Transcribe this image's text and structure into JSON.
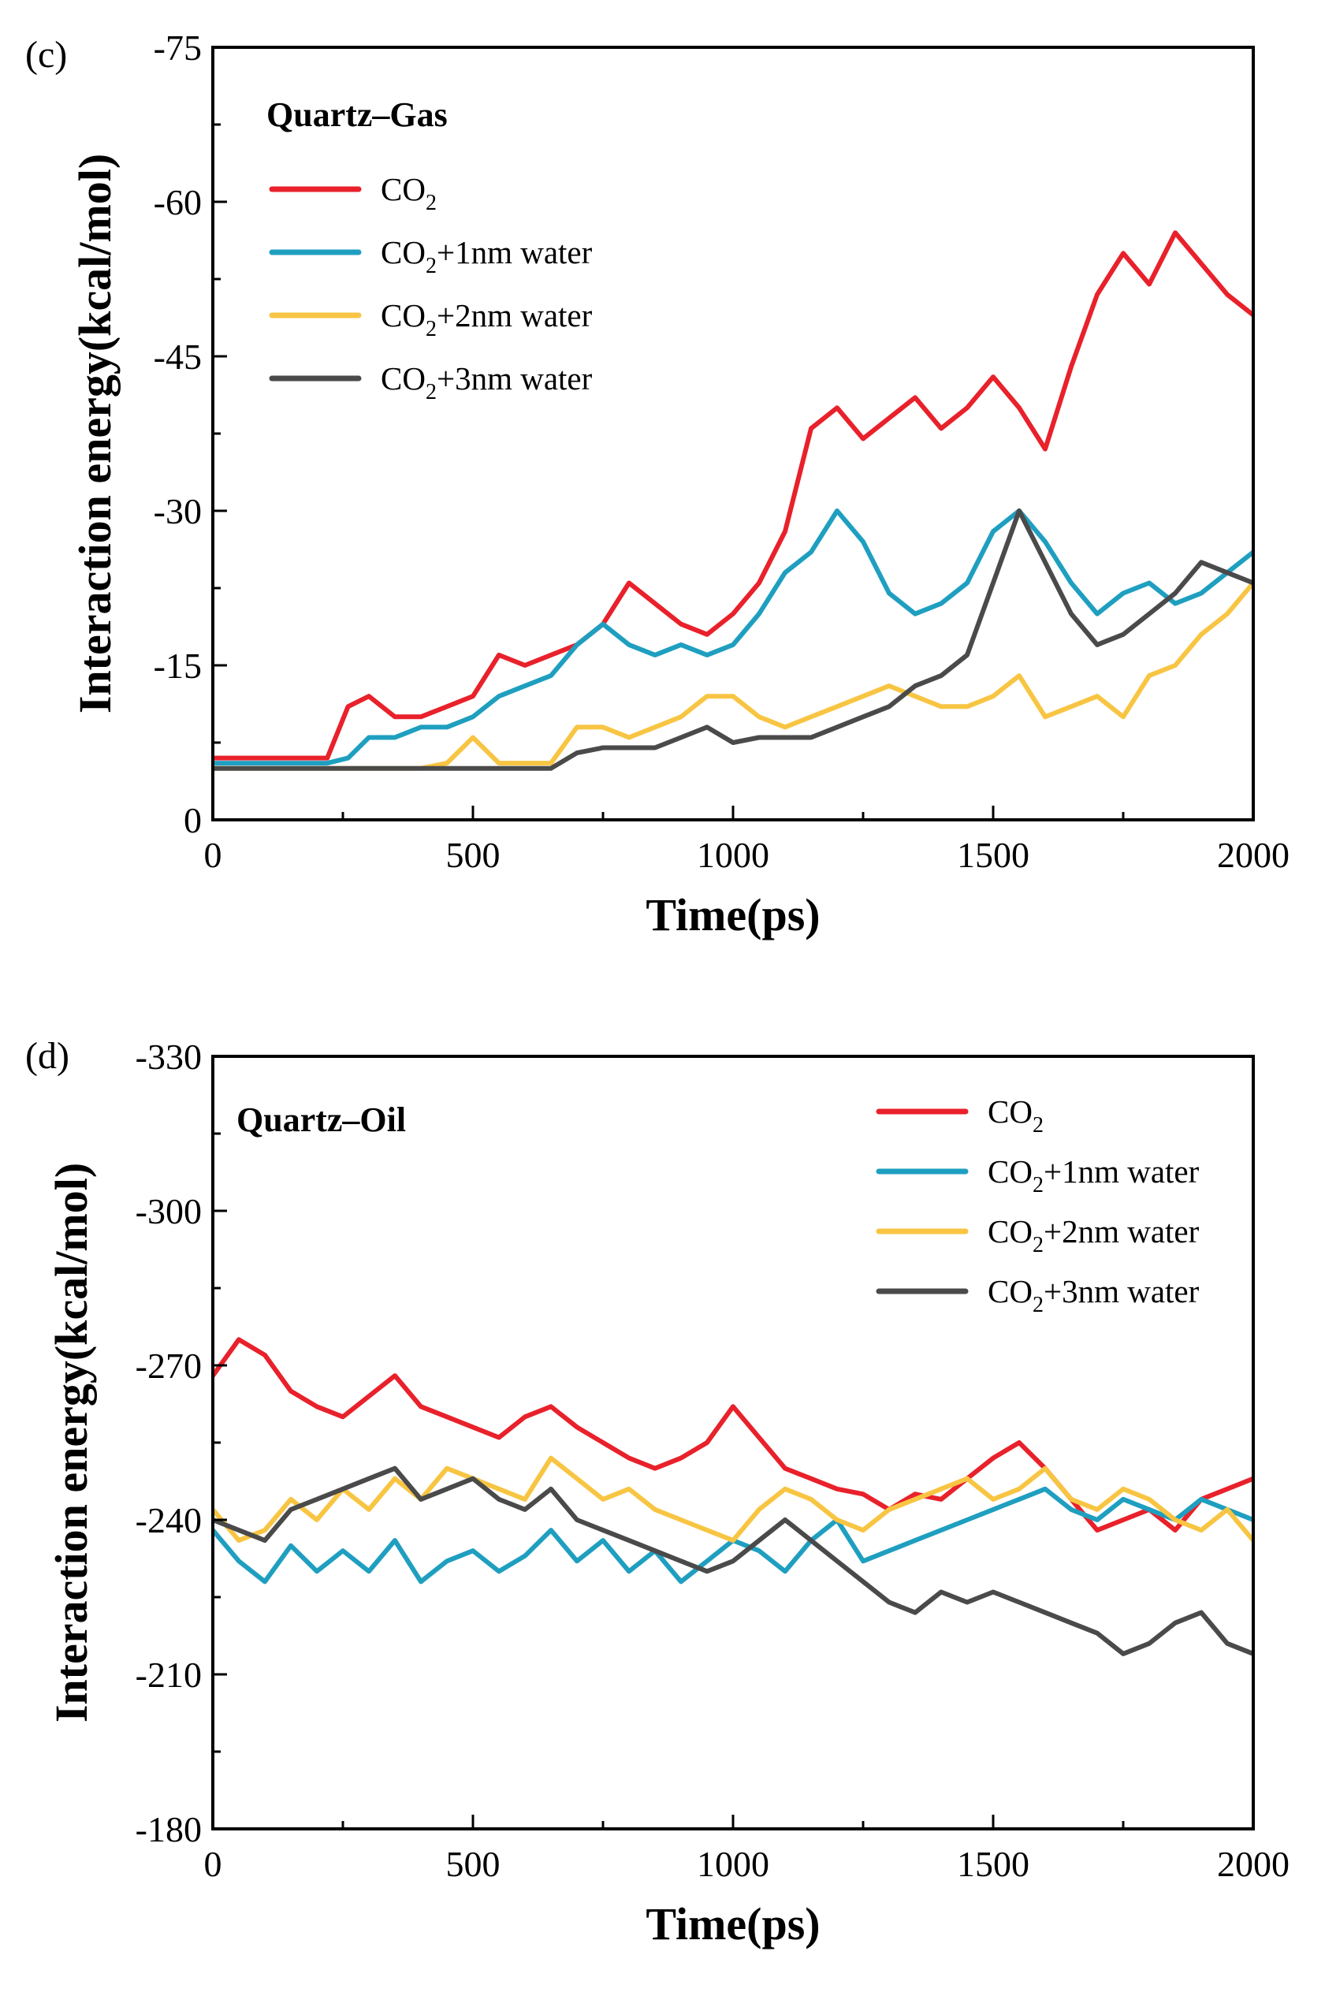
{
  "chart_data": [
    {
      "type": "line",
      "panel_label": "(c)",
      "title": "Quartz–Gas",
      "xlabel": "Time(ps)",
      "ylabel": "Interaction energy(kcal/mol)",
      "xlim": [
        0,
        2000
      ],
      "ylim": [
        0,
        -75
      ],
      "xticks": [
        "0",
        "500",
        "1000",
        "1500",
        "2000"
      ],
      "yticks": [
        "0",
        "-15",
        "-30",
        "-45",
        "-60",
        "-75"
      ],
      "legend_position": "top-left",
      "x": [
        0,
        100,
        200,
        220,
        260,
        300,
        350,
        400,
        450,
        500,
        550,
        600,
        650,
        700,
        750,
        800,
        850,
        900,
        950,
        1000,
        1050,
        1100,
        1150,
        1200,
        1250,
        1300,
        1350,
        1400,
        1450,
        1500,
        1550,
        1600,
        1650,
        1700,
        1750,
        1800,
        1850,
        1900,
        1950,
        2000
      ],
      "series": [
        {
          "name": "CO2",
          "legend_main": "CO",
          "legend_sub": "2",
          "legend_rest": "",
          "color": "#e8212b",
          "values": [
            -6,
            -6,
            -6,
            -6,
            -11,
            -12,
            -10,
            -10,
            -11,
            -12,
            -16,
            -15,
            -16,
            -17,
            -19,
            -23,
            -21,
            -19,
            -18,
            -20,
            -23,
            -28,
            -38,
            -40,
            -37,
            -39,
            -41,
            -38,
            -40,
            -43,
            -40,
            -36,
            -44,
            -51,
            -55,
            -52,
            -57,
            -54,
            -51,
            -49
          ]
        },
        {
          "name": "CO2+1nm water",
          "legend_main": "CO",
          "legend_sub": "2",
          "legend_rest": "+1nm water",
          "color": "#1f9fc0",
          "values": [
            -5.5,
            -5.5,
            -5.5,
            -5.5,
            -6,
            -8,
            -8,
            -9,
            -9,
            -10,
            -12,
            -13,
            -14,
            -17,
            -19,
            -17,
            -16,
            -17,
            -16,
            -17,
            -20,
            -24,
            -26,
            -30,
            -27,
            -22,
            -20,
            -21,
            -23,
            -28,
            -30,
            -27,
            -23,
            -20,
            -22,
            -23,
            -21,
            -22,
            -24,
            -26
          ]
        },
        {
          "name": "CO2+2nm water",
          "legend_main": "CO",
          "legend_sub": "2",
          "legend_rest": "+2nm water",
          "color": "#f8c543",
          "values": [
            -5,
            -5,
            -5,
            -5,
            -5,
            -5,
            -5,
            -5,
            -5.5,
            -8,
            -5.5,
            -5.5,
            -5.5,
            -9,
            -9,
            -8,
            -9,
            -10,
            -12,
            -12,
            -10,
            -9,
            -10,
            -11,
            -12,
            -13,
            -12,
            -11,
            -11,
            -12,
            -14,
            -10,
            -11,
            -12,
            -10,
            -14,
            -15,
            -18,
            -20,
            -23
          ]
        },
        {
          "name": "CO2+3nm water",
          "legend_main": "CO",
          "legend_sub": "2",
          "legend_rest": "+3nm water",
          "color": "#4a4a4a",
          "values": [
            -5,
            -5,
            -5,
            -5,
            -5,
            -5,
            -5,
            -5,
            -5,
            -5,
            -5,
            -5,
            -5,
            -6.5,
            -7,
            -7,
            -7,
            -8,
            -9,
            -7.5,
            -8,
            -8,
            -8,
            -9,
            -10,
            -11,
            -13,
            -14,
            -16,
            -23,
            -30,
            -25,
            -20,
            -17,
            -18,
            -20,
            -22,
            -25,
            -24,
            -23
          ]
        }
      ]
    },
    {
      "type": "line",
      "panel_label": "(d)",
      "title": "Quartz–Oil",
      "xlabel": "Time(ps)",
      "ylabel": "Interaction energy(kcal/mol)",
      "xlim": [
        0,
        2000
      ],
      "ylim": [
        -180,
        -330
      ],
      "xticks": [
        "0",
        "500",
        "1000",
        "1500",
        "2000"
      ],
      "yticks": [
        "-180",
        "-210",
        "-240",
        "-270",
        "-300",
        "-330"
      ],
      "legend_position": "top-right",
      "x": [
        0,
        50,
        100,
        150,
        200,
        250,
        300,
        350,
        400,
        450,
        500,
        550,
        600,
        650,
        700,
        750,
        800,
        850,
        900,
        950,
        1000,
        1050,
        1100,
        1150,
        1200,
        1250,
        1300,
        1350,
        1400,
        1450,
        1500,
        1550,
        1600,
        1650,
        1700,
        1750,
        1800,
        1850,
        1900,
        1950,
        2000
      ],
      "series": [
        {
          "name": "CO2",
          "legend_main": "CO",
          "legend_sub": "2",
          "legend_rest": "",
          "color": "#e8212b",
          "values": [
            -268,
            -275,
            -272,
            -265,
            -262,
            -260,
            -264,
            -268,
            -262,
            -260,
            -258,
            -256,
            -260,
            -262,
            -258,
            -255,
            -252,
            -250,
            -252,
            -255,
            -262,
            -256,
            -250,
            -248,
            -246,
            -245,
            -242,
            -245,
            -244,
            -248,
            -252,
            -255,
            -250,
            -244,
            -238,
            -240,
            -242,
            -238,
            -244,
            -246,
            -248
          ]
        },
        {
          "name": "CO2+1nm water",
          "legend_main": "CO",
          "legend_sub": "2",
          "legend_rest": "+1nm water",
          "color": "#1f9fc0",
          "values": [
            -238,
            -232,
            -228,
            -235,
            -230,
            -234,
            -230,
            -236,
            -228,
            -232,
            -234,
            -230,
            -233,
            -238,
            -232,
            -236,
            -230,
            -234,
            -228,
            -232,
            -236,
            -234,
            -230,
            -236,
            -240,
            -232,
            -234,
            -236,
            -238,
            -240,
            -242,
            -244,
            -246,
            -242,
            -240,
            -244,
            -242,
            -240,
            -244,
            -242,
            -240
          ]
        },
        {
          "name": "CO2+2nm water",
          "legend_main": "CO",
          "legend_sub": "2",
          "legend_rest": "+2nm water",
          "color": "#f8c543",
          "values": [
            -242,
            -236,
            -238,
            -244,
            -240,
            -246,
            -242,
            -248,
            -244,
            -250,
            -248,
            -246,
            -244,
            -252,
            -248,
            -244,
            -246,
            -242,
            -240,
            -238,
            -236,
            -242,
            -246,
            -244,
            -240,
            -238,
            -242,
            -244,
            -246,
            -248,
            -244,
            -246,
            -250,
            -244,
            -242,
            -246,
            -244,
            -240,
            -238,
            -242,
            -236
          ]
        },
        {
          "name": "CO2+3nm water",
          "legend_main": "CO",
          "legend_sub": "2",
          "legend_rest": "+3nm water",
          "color": "#4a4a4a",
          "values": [
            -240,
            -238,
            -236,
            -242,
            -244,
            -246,
            -248,
            -250,
            -244,
            -246,
            -248,
            -244,
            -242,
            -246,
            -240,
            -238,
            -236,
            -234,
            -232,
            -230,
            -232,
            -236,
            -240,
            -236,
            -232,
            -228,
            -224,
            -222,
            -226,
            -224,
            -226,
            -224,
            -222,
            -220,
            -218,
            -214,
            -216,
            -220,
            -222,
            -216,
            -214
          ]
        }
      ]
    }
  ]
}
